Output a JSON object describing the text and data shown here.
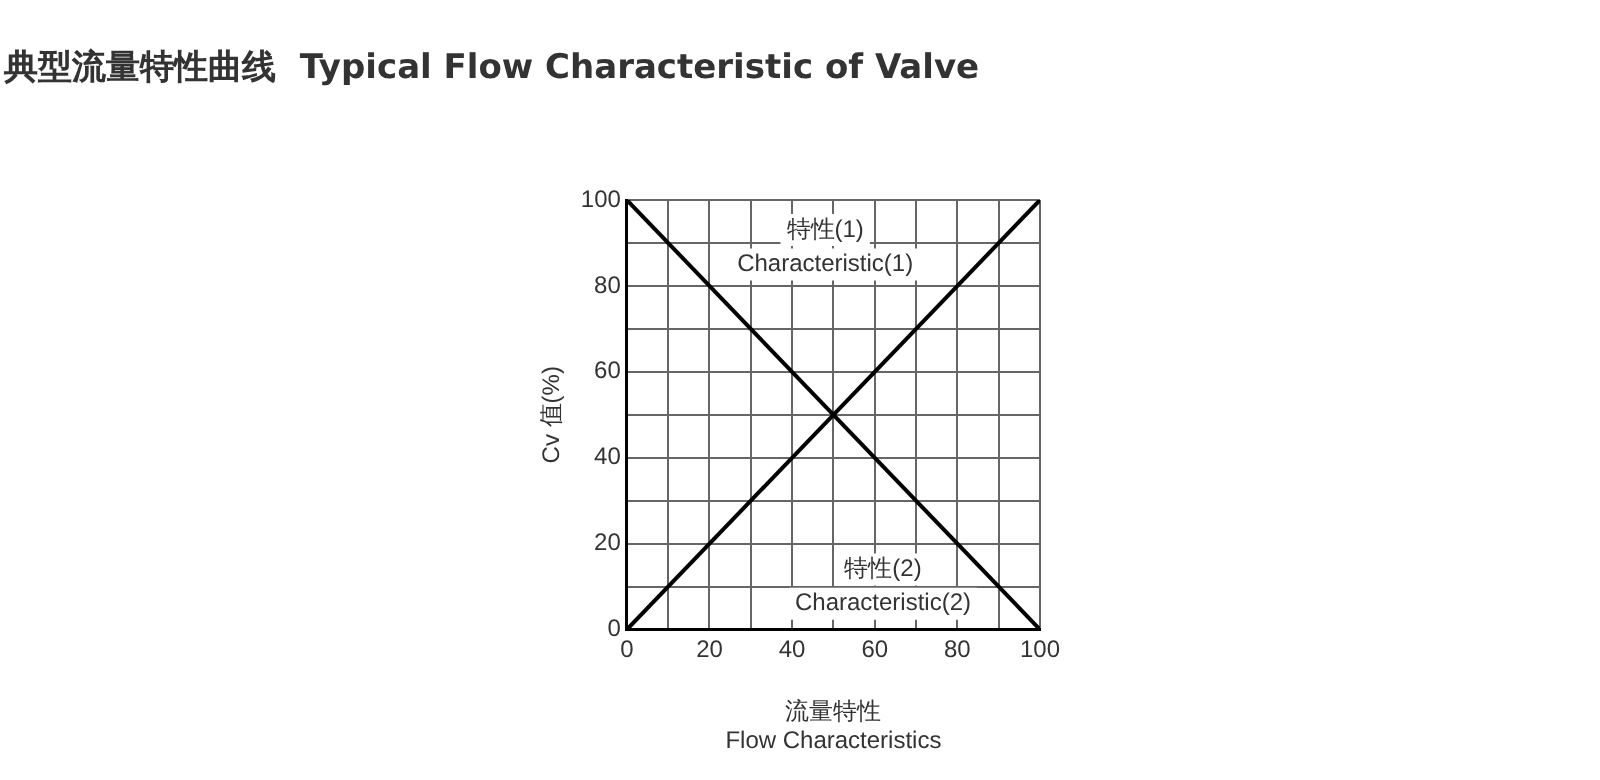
{
  "chart_data": {
    "type": "line",
    "title": "典型流量特性曲线  Typical Flow Characteristic of Valve",
    "xlabel": "流量特性\nFlow Characteristics",
    "ylabel": "Cv 值(%)",
    "x": [
      0,
      100
    ],
    "series": [
      {
        "color": "#000000",
        "values": [
          0,
          100
        ]
      },
      {
        "color": "#000000",
        "values": [
          100,
          0
        ]
      }
    ],
    "xlim": [
      0,
      100
    ],
    "ylim": [
      0,
      100
    ],
    "xticks": [
      0,
      {
        "value": 10,
        "label": null
      },
      20,
      {
        "value": 30,
        "label": null
      },
      40,
      {
        "value": 50,
        "label": null
      },
      60,
      {
        "value": 70,
        "label": null
      },
      80,
      {
        "value": 90,
        "label": null
      },
      100
    ],
    "yticks": [
      0,
      {
        "value": 10,
        "label": null
      },
      20,
      {
        "value": 30,
        "label": null
      },
      40,
      {
        "value": 50,
        "label": null
      },
      60,
      {
        "value": 70,
        "label": null
      },
      80,
      {
        "value": 90,
        "label": null
      },
      100
    ],
    "grid": true,
    "legend": false,
    "marker": "none",
    "line_style": "solid",
    "annotations": [
      "特性(1)",
      "Characteristic(1)",
      "特性(2)",
      "Characteristic(2)"
    ]
  }
}
